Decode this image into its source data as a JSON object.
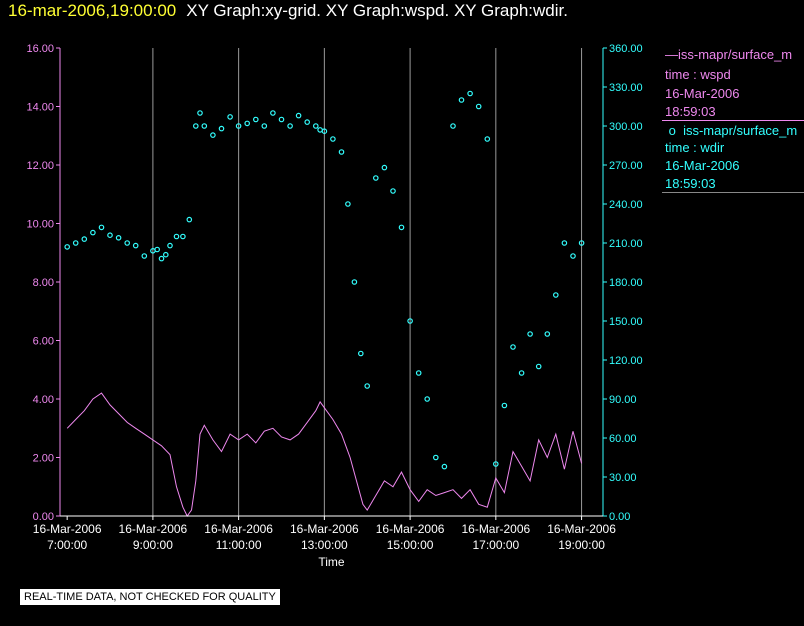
{
  "header": {
    "timestamp": "16-mar-2006,19:00:00",
    "graph_titles": "XY Graph:xy-grid.  XY Graph:wspd.  XY Graph:wdir."
  },
  "legend": {
    "series1": {
      "name": "iss-mapr/surface_m",
      "label": "time : wspd",
      "date": "16-Mar-2006",
      "time": "18:59:03",
      "color": "#ee88ee"
    },
    "series2": {
      "name": "iss-mapr/surface_m",
      "label": "time : wdir",
      "date": "16-Mar-2006",
      "time": "18:59:03",
      "color": "#33ffff"
    }
  },
  "quality_note": "REAL-TIME DATA, NOT CHECKED FOR QUALITY",
  "chart_data": {
    "type": "line",
    "xlabel": "Time",
    "x_range_hours": [
      6.833,
      19.5
    ],
    "x_ticks": [
      {
        "hour": 7,
        "date": "16-Mar-2006",
        "time": "7:00:00"
      },
      {
        "hour": 9,
        "date": "16-Mar-2006",
        "time": "9:00:00"
      },
      {
        "hour": 11,
        "date": "16-Mar-2006",
        "time": "11:00:00"
      },
      {
        "hour": 13,
        "date": "16-Mar-2006",
        "time": "13:00:00"
      },
      {
        "hour": 15,
        "date": "16-Mar-2006",
        "time": "15:00:00"
      },
      {
        "hour": 17,
        "date": "16-Mar-2006",
        "time": "17:00:00"
      },
      {
        "hour": 19,
        "date": "16-Mar-2006",
        "time": "19:00:00"
      }
    ],
    "grid_vertical_hours": [
      9,
      11,
      13,
      15,
      17,
      19
    ],
    "y_left": {
      "label": "wspd",
      "range": [
        0,
        16
      ],
      "color": "#ee88ee",
      "ticks": [
        "0.00",
        "2.00",
        "4.00",
        "6.00",
        "8.00",
        "10.00",
        "12.00",
        "14.00",
        "16.00"
      ]
    },
    "y_right": {
      "label": "wdir",
      "range": [
        0,
        360
      ],
      "color": "#33ffff",
      "ticks": [
        "0.00",
        "30.00",
        "60.00",
        "90.00",
        "120.00",
        "150.00",
        "180.00",
        "210.00",
        "240.00",
        "270.00",
        "300.00",
        "330.00",
        "360.00"
      ]
    },
    "series": [
      {
        "name": "wspd",
        "axis": "left",
        "style": "line",
        "color": "#ee88ee",
        "x": [
          7.0,
          7.2,
          7.4,
          7.6,
          7.8,
          8.0,
          8.2,
          8.4,
          8.6,
          8.8,
          9.0,
          9.2,
          9.4,
          9.55,
          9.7,
          9.8,
          9.9,
          10.0,
          10.1,
          10.2,
          10.4,
          10.6,
          10.8,
          11.0,
          11.2,
          11.4,
          11.6,
          11.8,
          12.0,
          12.2,
          12.4,
          12.6,
          12.8,
          12.9,
          13.0,
          13.2,
          13.4,
          13.5,
          13.6,
          13.75,
          13.9,
          14.0,
          14.2,
          14.4,
          14.6,
          14.8,
          15.0,
          15.2,
          15.4,
          15.6,
          15.8,
          16.0,
          16.2,
          16.4,
          16.6,
          16.8,
          17.0,
          17.2,
          17.4,
          17.6,
          17.8,
          18.0,
          18.2,
          18.4,
          18.6,
          18.8,
          19.0
        ],
        "y": [
          3.0,
          3.3,
          3.6,
          4.0,
          4.2,
          3.8,
          3.5,
          3.2,
          3.0,
          2.8,
          2.6,
          2.4,
          2.1,
          1.0,
          0.3,
          0.0,
          0.2,
          1.2,
          2.8,
          3.1,
          2.6,
          2.2,
          2.8,
          2.6,
          2.8,
          2.5,
          2.9,
          3.0,
          2.7,
          2.6,
          2.8,
          3.2,
          3.6,
          3.9,
          3.7,
          3.3,
          2.8,
          2.4,
          2.0,
          1.2,
          0.4,
          0.2,
          0.7,
          1.2,
          1.0,
          1.5,
          0.9,
          0.5,
          0.9,
          0.7,
          0.8,
          0.9,
          0.6,
          0.9,
          0.4,
          0.3,
          1.3,
          0.8,
          2.2,
          1.7,
          1.2,
          2.6,
          2.0,
          2.8,
          1.6,
          2.9,
          1.8
        ]
      },
      {
        "name": "wdir",
        "axis": "right",
        "style": "scatter",
        "color": "#33ffff",
        "x": [
          7.0,
          7.2,
          7.4,
          7.6,
          7.8,
          8.0,
          8.2,
          8.4,
          8.6,
          8.8,
          9.0,
          9.1,
          9.2,
          9.3,
          9.4,
          9.55,
          9.7,
          9.85,
          10.0,
          10.1,
          10.2,
          10.4,
          10.6,
          10.8,
          11.0,
          11.2,
          11.4,
          11.6,
          11.8,
          12.0,
          12.2,
          12.4,
          12.6,
          12.8,
          12.9,
          13.0,
          13.2,
          13.4,
          13.55,
          13.7,
          13.85,
          14.0,
          14.2,
          14.4,
          14.6,
          14.8,
          15.0,
          15.2,
          15.4,
          15.6,
          15.8,
          16.0,
          16.2,
          16.4,
          16.6,
          16.8,
          17.0,
          17.2,
          17.4,
          17.6,
          17.8,
          18.0,
          18.2,
          18.4,
          18.6,
          18.8,
          19.0
        ],
        "y": [
          207,
          210,
          213,
          218,
          222,
          216,
          214,
          210,
          208,
          200,
          204,
          205,
          198,
          201,
          208,
          215,
          215,
          228,
          300,
          310,
          300,
          293,
          298,
          307,
          300,
          302,
          305,
          300,
          310,
          305,
          300,
          308,
          303,
          300,
          297,
          296,
          290,
          280,
          240,
          180,
          125,
          100,
          260,
          268,
          250,
          222,
          150,
          110,
          90,
          45,
          38,
          300,
          320,
          325,
          315,
          290,
          40,
          85,
          130,
          110,
          140,
          115,
          140,
          170,
          210,
          200,
          210
        ]
      }
    ]
  }
}
